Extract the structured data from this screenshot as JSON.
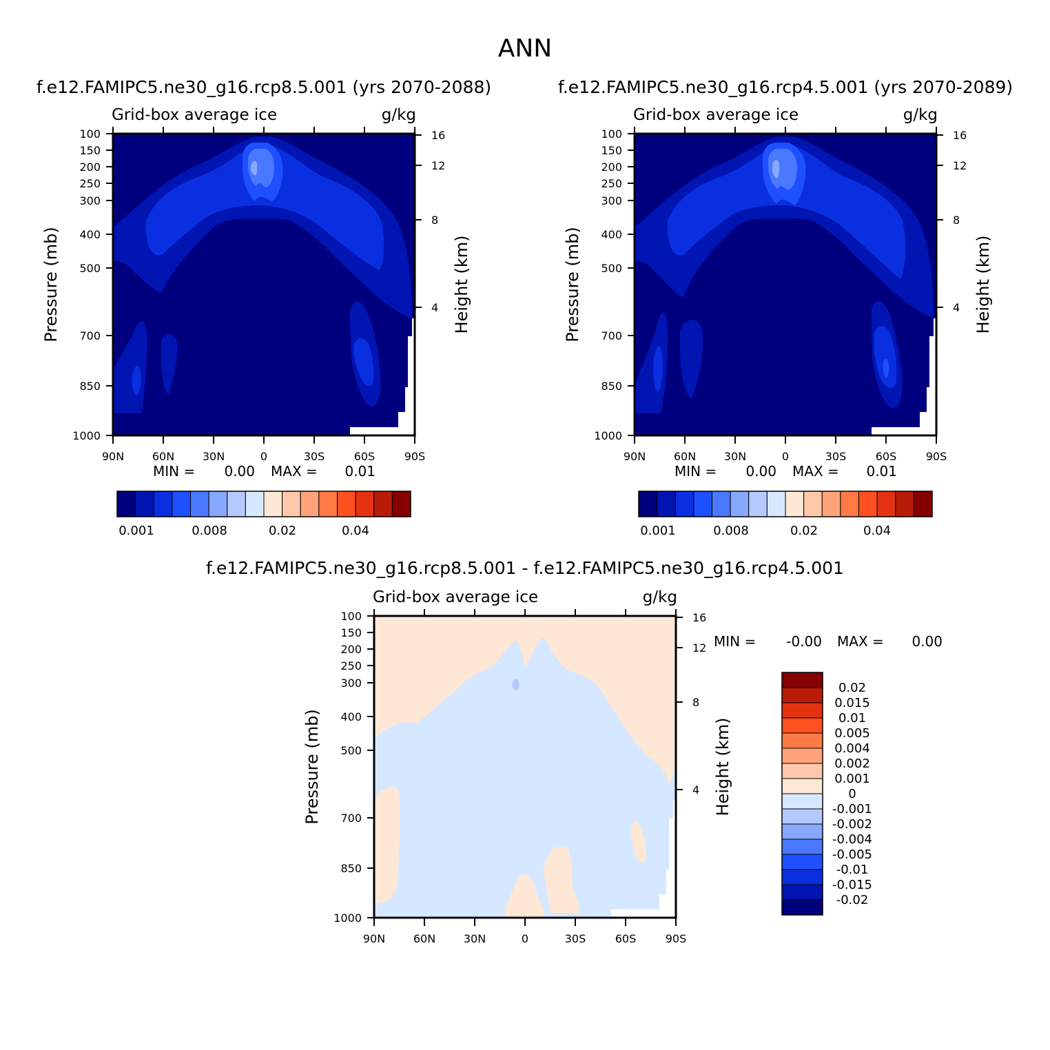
{
  "figure": {
    "title": "ANN"
  },
  "panels": [
    {
      "subtitle": "f.e12.FAMIPC5.ne30_g16.rcp8.5.001 (yrs 2070-2088)",
      "variable": "Grid-box average ice",
      "units": "g/kg",
      "ylabel": "Pressure (mb)",
      "y2label": "Height (km)",
      "stats": {
        "min_label": "MIN =",
        "min_value": "0.00",
        "max_label": "MAX =",
        "max_value": "0.01"
      }
    },
    {
      "subtitle": "f.e12.FAMIPC5.ne30_g16.rcp4.5.001 (yrs 2070-2089)",
      "variable": "Grid-box average ice",
      "units": "g/kg",
      "ylabel": "Pressure (mb)",
      "y2label": "Height (km)",
      "stats": {
        "min_label": "MIN =",
        "min_value": "0.00",
        "max_label": "MAX =",
        "max_value": "0.01"
      }
    },
    {
      "subtitle": "f.e12.FAMIPC5.ne30_g16.rcp8.5.001 - f.e12.FAMIPC5.ne30_g16.rcp4.5.001",
      "variable": "Grid-box average ice",
      "units": "g/kg",
      "ylabel": "Pressure (mb)",
      "y2label": "Height (km)",
      "stats": {
        "min_label": "MIN =",
        "min_value": "-0.00",
        "max_label": "MAX =",
        "max_value": "0.00"
      }
    }
  ],
  "chart_data": [
    {
      "type": "heatmap",
      "title": "f.e12.FAMIPC5.ne30_g16.rcp8.5.001 (yrs 2070-2088)",
      "variable": "Grid-box average ice",
      "units": "g/kg",
      "x_ticks": [
        "90N",
        "60N",
        "30N",
        "0",
        "30S",
        "60S",
        "90S"
      ],
      "y_ticks": [
        "100",
        "150",
        "200",
        "250",
        "300",
        "400",
        "500",
        "700",
        "850",
        "1000"
      ],
      "y2_ticks": [
        "16",
        "12",
        "8",
        "4"
      ],
      "ylim": [
        1000,
        100
      ],
      "xlim": [
        90,
        -90
      ],
      "colorbar": {
        "levels": [
          "0.001",
          "0.008",
          "0.02",
          "0.04"
        ],
        "colors": [
          "#00007f",
          "#0015b2",
          "#0a2fe0",
          "#1e50ff",
          "#4a78ff",
          "#86a8ff",
          "#b4caff",
          "#d6e8ff",
          "#ffe7d6",
          "#ffc8aa",
          "#ffa47a",
          "#ff7a45",
          "#ff5020",
          "#e43210",
          "#b81c08",
          "#870000"
        ]
      },
      "regions": [
        {
          "name": "background",
          "value": 0.001
        },
        {
          "name": "upper ice arc",
          "value": 0.002
        },
        {
          "name": "arc core",
          "value": 0.004
        },
        {
          "name": "tropical max near 200 mb",
          "value": 0.008
        },
        {
          "name": "low-level max near 60S",
          "value": 0.004
        }
      ],
      "min": "0.00",
      "max": "0.01"
    },
    {
      "type": "heatmap",
      "title": "f.e12.FAMIPC5.ne30_g16.rcp4.5.001 (yrs 2070-2089)",
      "variable": "Grid-box average ice",
      "units": "g/kg",
      "x_ticks": [
        "90N",
        "60N",
        "30N",
        "0",
        "30S",
        "60S",
        "90S"
      ],
      "y_ticks": [
        "100",
        "150",
        "200",
        "250",
        "300",
        "400",
        "500",
        "700",
        "850",
        "1000"
      ],
      "y2_ticks": [
        "16",
        "12",
        "8",
        "4"
      ],
      "ylim": [
        1000,
        100
      ],
      "xlim": [
        90,
        -90
      ],
      "colorbar": {
        "levels": [
          "0.001",
          "0.008",
          "0.02",
          "0.04"
        ],
        "colors": [
          "#00007f",
          "#0015b2",
          "#0a2fe0",
          "#1e50ff",
          "#4a78ff",
          "#86a8ff",
          "#b4caff",
          "#d6e8ff",
          "#ffe7d6",
          "#ffc8aa",
          "#ffa47a",
          "#ff7a45",
          "#ff5020",
          "#e43210",
          "#b81c08",
          "#870000"
        ]
      },
      "regions": [
        {
          "name": "background",
          "value": 0.001
        },
        {
          "name": "upper ice arc",
          "value": 0.002
        },
        {
          "name": "arc core",
          "value": 0.004
        },
        {
          "name": "tropical max near 200 mb",
          "value": 0.008
        },
        {
          "name": "low-level max near 60S",
          "value": 0.004
        }
      ],
      "min": "0.00",
      "max": "0.01"
    },
    {
      "type": "heatmap",
      "title": "f.e12.FAMIPC5.ne30_g16.rcp8.5.001 - f.e12.FAMIPC5.ne30_g16.rcp4.5.001",
      "variable": "Grid-box average ice",
      "units": "g/kg",
      "x_ticks": [
        "90N",
        "60N",
        "30N",
        "0",
        "30S",
        "60S",
        "90S"
      ],
      "y_ticks": [
        "100",
        "150",
        "200",
        "250",
        "300",
        "400",
        "500",
        "700",
        "850",
        "1000"
      ],
      "y2_ticks": [
        "16",
        "12",
        "8",
        "4"
      ],
      "ylim": [
        1000,
        100
      ],
      "xlim": [
        90,
        -90
      ],
      "colorbar": {
        "levels": [
          "0.02",
          "0.015",
          "0.01",
          "0.005",
          "0.004",
          "0.002",
          "0.001",
          "0",
          "-0.001",
          "-0.002",
          "-0.004",
          "-0.005",
          "-0.01",
          "-0.015",
          "-0.02"
        ],
        "colors": [
          "#870000",
          "#b81c08",
          "#e43210",
          "#ff5020",
          "#ff7a45",
          "#ffa47a",
          "#ffc8aa",
          "#ffe7d6",
          "#d6e8ff",
          "#b4caff",
          "#86a8ff",
          "#4a78ff",
          "#1e50ff",
          "#0a2fe0",
          "#0015b2",
          "#00007f"
        ]
      },
      "regions": [
        {
          "name": "stratosphere and high latitudes",
          "value": 0.0005
        },
        {
          "name": "troposphere",
          "value": -0.0005
        },
        {
          "name": "isolated min near 300 mb",
          "value": -0.0015
        }
      ],
      "min": "-0.00",
      "max": "0.00"
    }
  ]
}
